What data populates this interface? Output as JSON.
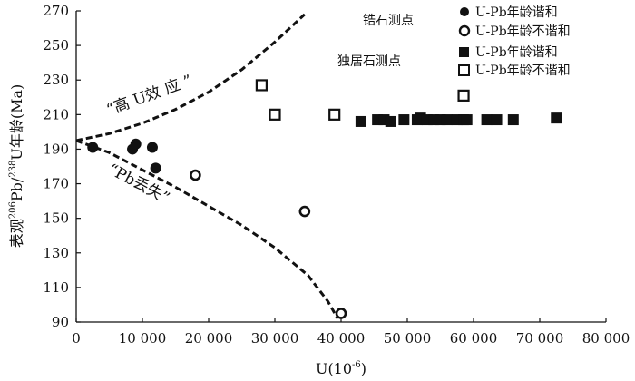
{
  "chart_data": {
    "type": "scatter",
    "xlabel_main": "U(10",
    "xlabel_exp": "-6",
    "xlabel_end": ")",
    "ylabel_a": "表观",
    "ylabel_sup1": "206",
    "ylabel_b": "Pb/",
    "ylabel_sup2": "238",
    "ylabel_c": "U年龄(Ma)",
    "xlim": [
      0,
      80000
    ],
    "ylim": [
      90,
      270
    ],
    "x_ticks": [
      0,
      10000,
      20000,
      30000,
      40000,
      50000,
      60000,
      70000,
      80000
    ],
    "x_tick_labels": [
      "0",
      "10 000",
      "20 000",
      "30 000",
      "40 000",
      "50 000",
      "60 000",
      "70 000",
      "80 000"
    ],
    "y_ticks": [
      90,
      110,
      130,
      150,
      170,
      190,
      210,
      230,
      250,
      270
    ],
    "y_tick_labels": [
      "90",
      "110",
      "130",
      "150",
      "170",
      "190",
      "210",
      "230",
      "250",
      "270"
    ],
    "legend": {
      "group1": "锆石测点",
      "group2": "独居石测点",
      "concordant": "U-Pb年龄谐和",
      "discordant": "U-Pb年龄不谐和"
    },
    "annotations": {
      "high_u": "“高 U效 应 ”",
      "pb_loss": "“Pb丢失”"
    },
    "series": [
      {
        "name": "锆石测点 U-Pb年龄谐和",
        "marker": "filled-circle",
        "points": [
          [
            2500,
            191
          ],
          [
            8500,
            190
          ],
          [
            9000,
            193
          ],
          [
            11500,
            191
          ],
          [
            12000,
            179
          ]
        ]
      },
      {
        "name": "锆石测点 U-Pb年龄不谐和",
        "marker": "open-circle",
        "points": [
          [
            18000,
            175
          ],
          [
            34500,
            154
          ],
          [
            40000,
            95
          ]
        ]
      },
      {
        "name": "独居石测点 U-Pb年龄谐和",
        "marker": "filled-square",
        "points": [
          [
            43000,
            206
          ],
          [
            45500,
            207
          ],
          [
            46500,
            207
          ],
          [
            47500,
            206
          ],
          [
            49500,
            207
          ],
          [
            51500,
            207
          ],
          [
            52000,
            208
          ],
          [
            53000,
            207
          ],
          [
            54000,
            207
          ],
          [
            55000,
            207
          ],
          [
            56000,
            207
          ],
          [
            57500,
            207
          ],
          [
            58500,
            207
          ],
          [
            59000,
            207
          ],
          [
            62000,
            207
          ],
          [
            63500,
            207
          ],
          [
            66000,
            207
          ],
          [
            72500,
            208
          ]
        ]
      },
      {
        "name": "独居石测点 U-Pb年龄不谐和",
        "marker": "open-square",
        "points": [
          [
            28000,
            227
          ],
          [
            30000,
            210
          ],
          [
            39000,
            210
          ],
          [
            58500,
            221
          ]
        ]
      }
    ],
    "curves": [
      {
        "name": "high-u-effect",
        "points": [
          [
            0,
            195
          ],
          [
            5000,
            199
          ],
          [
            10000,
            205
          ],
          [
            15000,
            213
          ],
          [
            20000,
            223
          ],
          [
            25000,
            236
          ],
          [
            30000,
            252
          ],
          [
            34500,
            268
          ]
        ]
      },
      {
        "name": "pb-loss",
        "points": [
          [
            0,
            195
          ],
          [
            5000,
            188
          ],
          [
            10000,
            178
          ],
          [
            15000,
            168
          ],
          [
            20000,
            157
          ],
          [
            25000,
            146
          ],
          [
            30000,
            133
          ],
          [
            35000,
            117
          ],
          [
            38000,
            102
          ],
          [
            39500,
            92
          ]
        ]
      }
    ]
  }
}
